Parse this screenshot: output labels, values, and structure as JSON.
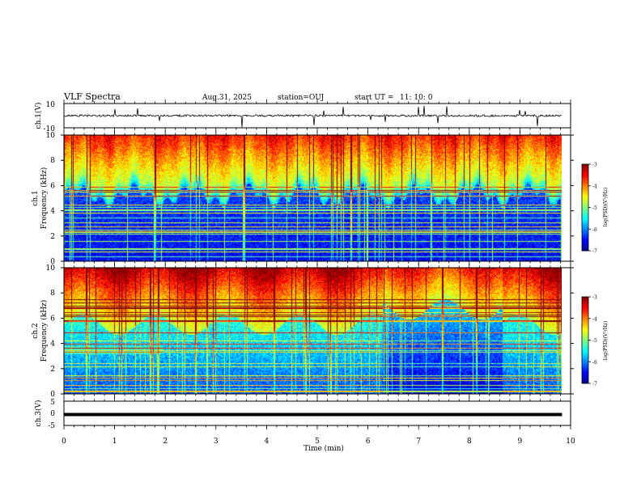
{
  "header": {
    "title": "VLF Spectra",
    "date": "Aug.31, 2025",
    "station": "station=OUJ",
    "start_label": "start  UT =",
    "start_time": "11: 10: 0"
  },
  "chart_data": [
    {
      "type": "line",
      "name": "ch1-waveform",
      "ylabel": "ch.1(V)",
      "ylim": [
        -10,
        10
      ],
      "yticks": [
        "10",
        "-10"
      ],
      "baseline": 0
    },
    {
      "type": "heatmap",
      "name": "ch1-spectrogram",
      "ylabel_line1": "ch.1",
      "ylabel_line2": "Frequency  (kHz)",
      "ylim": [
        0,
        10
      ],
      "yticks": [
        "0",
        "2",
        "4",
        "6",
        "8",
        "10"
      ],
      "colorbar": {
        "label": "log(PSD)(V²/Hz)",
        "ticks": [
          "-3",
          "-4",
          "-5",
          "-6",
          "-7"
        ],
        "range": [
          -7,
          -3
        ]
      }
    },
    {
      "type": "heatmap",
      "name": "ch2-spectrogram",
      "ylabel_line1": "ch.2",
      "ylabel_line2": "Frequency  (kHz)",
      "ylim": [
        0,
        10
      ],
      "yticks": [
        "0",
        "2",
        "4",
        "6",
        "8",
        "10"
      ],
      "colorbar": {
        "label": "log(PSD)(V²/Hz)",
        "ticks": [
          "-3",
          "-4",
          "-5",
          "-6",
          "-7"
        ],
        "range": [
          -7,
          -3
        ]
      }
    },
    {
      "type": "line",
      "name": "ch3-waveform",
      "ylabel": "ch.3(V)",
      "ylim": [
        -5,
        5
      ],
      "yticks": [
        "5",
        "0",
        "-5"
      ],
      "baseline": -0.5
    }
  ],
  "xaxis": {
    "label": "Time  (min)",
    "ticks": [
      "0",
      "1",
      "2",
      "3",
      "4",
      "5",
      "6",
      "7",
      "8",
      "9",
      "10"
    ],
    "range": [
      0,
      10
    ],
    "data_end": 9.83
  },
  "colors": {
    "axis": "#000000",
    "background": "#ffffff"
  }
}
